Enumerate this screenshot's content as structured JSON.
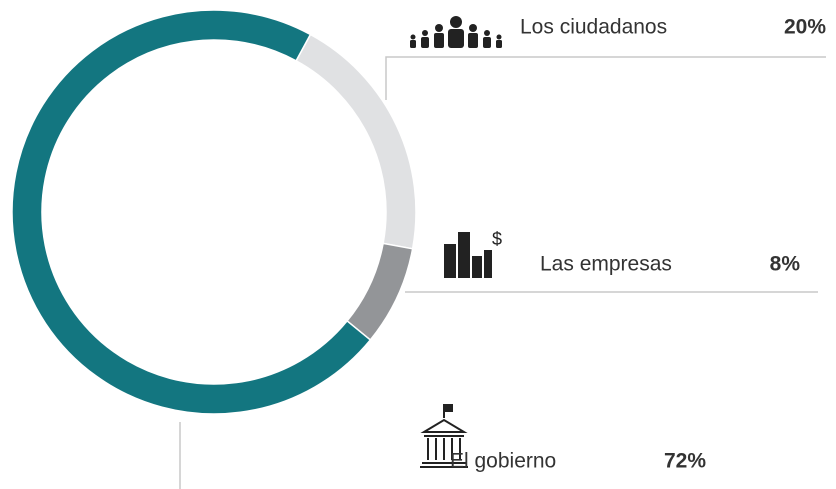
{
  "chart_data": {
    "type": "pie",
    "donut": true,
    "categories": [
      "Los ciudadanos",
      "Las empresas",
      "El gobierno"
    ],
    "values": [
      20,
      8,
      72
    ],
    "value_labels": [
      "20%",
      "8%",
      "72%"
    ],
    "colors": [
      "#e0e1e3",
      "#939598",
      "#137680"
    ]
  }
}
